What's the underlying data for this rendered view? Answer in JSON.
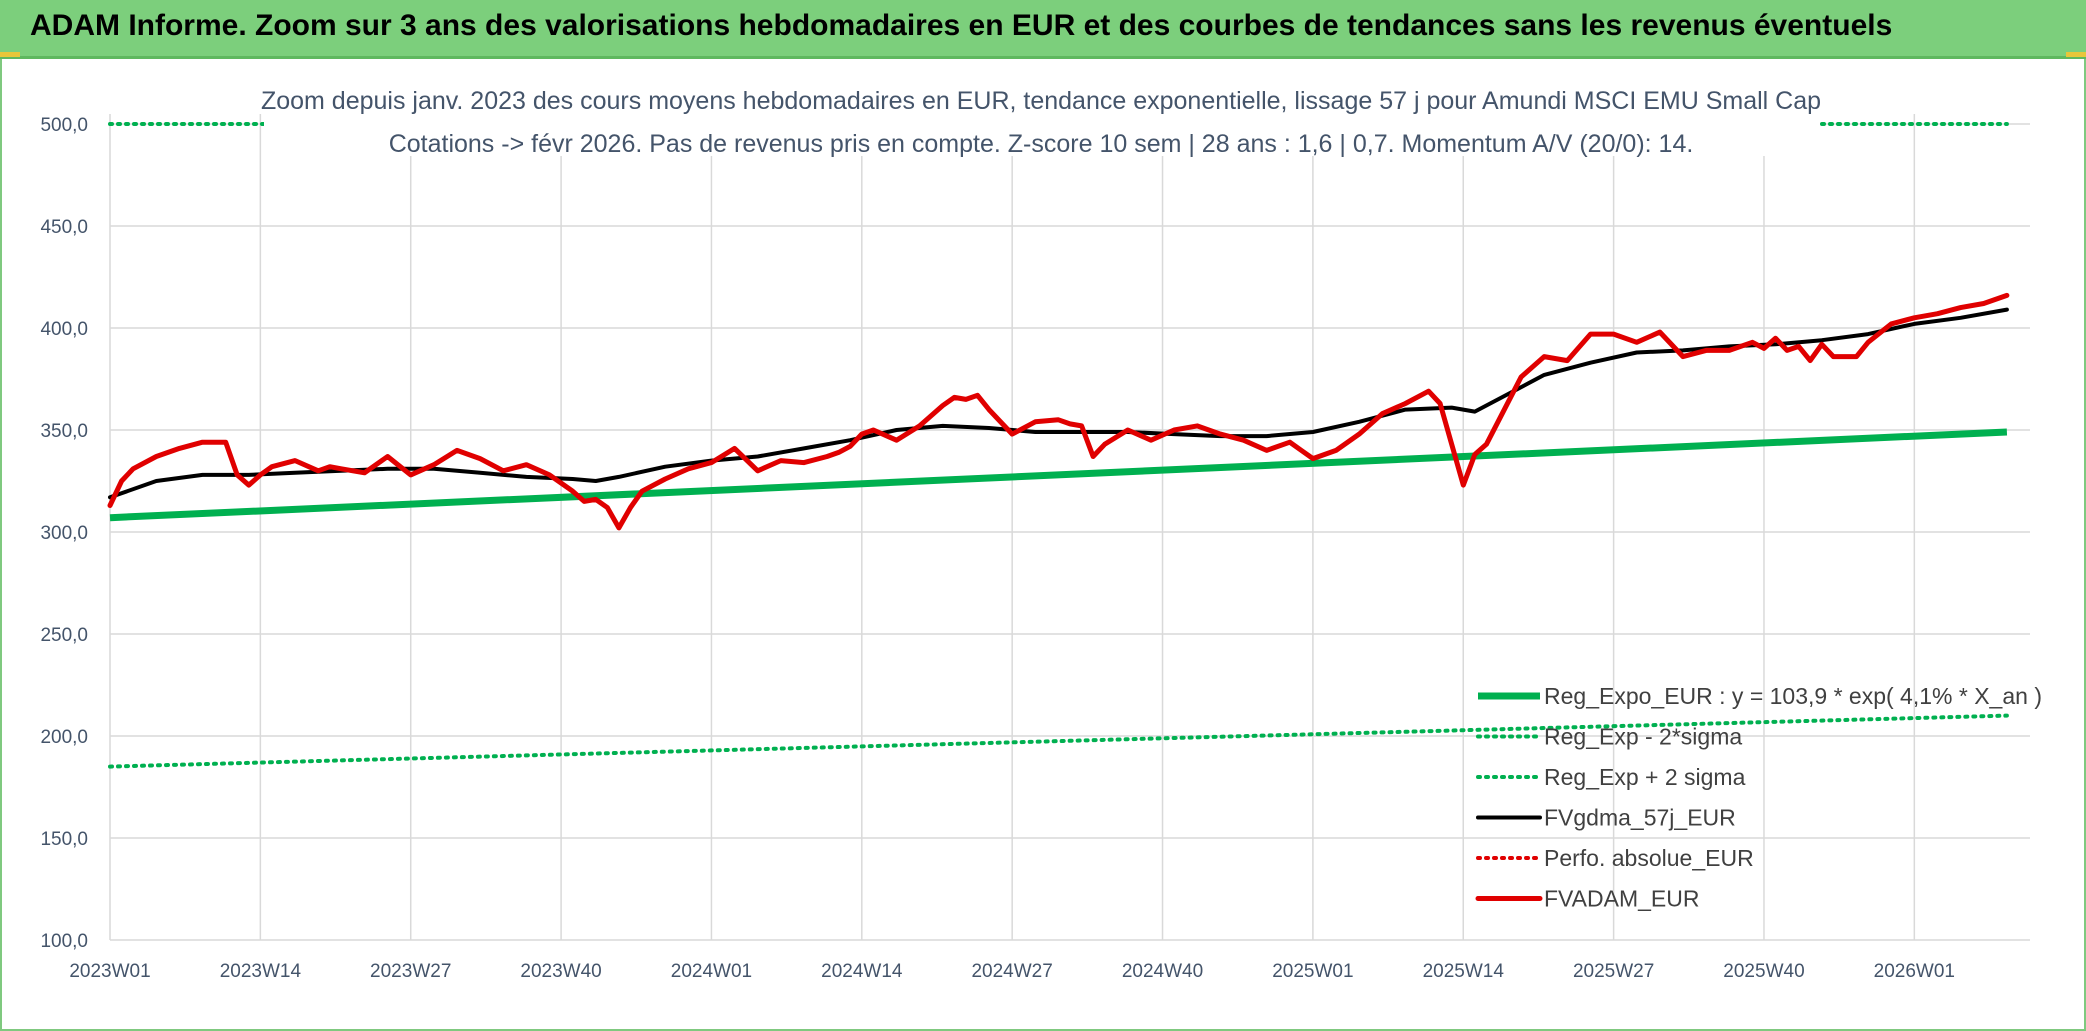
{
  "header": {
    "title": "ADAM Informe. Zoom sur 3 ans des valorisations hebdomadaires en EUR et des courbes de tendances sans les revenus éventuels"
  },
  "chart_data": {
    "type": "line",
    "title": "Zoom depuis janv. 2023 des cours moyens hebdomadaires en EUR, tendance exponentielle, lissage 57 j pour Amundi MSCI EMU Small Cap",
    "subtitle": "Cotations -> févr 2026. Pas de revenus pris en compte. Z-score 10 sem | 28 ans : 1,6 | 0,7. Momentum A/V (20/0): 14.",
    "xlabel": "",
    "ylabel": "",
    "ylim": [
      100,
      500
    ],
    "y_ticks": [
      "100,0",
      "150,0",
      "200,0",
      "250,0",
      "300,0",
      "350,0",
      "400,0",
      "450,0",
      "500,0"
    ],
    "x_ticks": [
      "2023W01",
      "2023W14",
      "2023W27",
      "2023W40",
      "2024W01",
      "2024W14",
      "2024W27",
      "2024W40",
      "2025W01",
      "2025W14",
      "2025W27",
      "2025W40",
      "2026W01"
    ],
    "grid": true,
    "legend_position": "bottom-right",
    "series": [
      {
        "name": "Reg_Expo_EUR : y = 103,9 * exp( 4,1% *  X_an )",
        "color": "#00b050",
        "style": "solid-thick",
        "x": [
          0,
          164
        ],
        "values": [
          307,
          349
        ]
      },
      {
        "name": "Reg_Exp - 2*sigma",
        "color": "#00b050",
        "style": "dotted",
        "x": [
          0,
          164
        ],
        "values": [
          185,
          210
        ]
      },
      {
        "name": "Reg_Exp + 2 sigma",
        "color": "#00b050",
        "style": "dotted",
        "x": [
          0,
          164
        ],
        "values": [
          500,
          500
        ]
      },
      {
        "name": "FVgdma_57j_EUR",
        "color": "#000000",
        "style": "solid",
        "x": [
          0,
          4,
          8,
          12,
          16,
          20,
          24,
          28,
          32,
          36,
          40,
          42,
          44,
          48,
          52,
          56,
          60,
          64,
          68,
          72,
          76,
          80,
          84,
          88,
          92,
          96,
          100,
          104,
          108,
          112,
          116,
          118,
          120,
          124,
          128,
          132,
          136,
          140,
          144,
          148,
          152,
          156,
          160,
          164
        ],
        "values": [
          317,
          325,
          328,
          328,
          329,
          330,
          331,
          331,
          329,
          327,
          326,
          325,
          327,
          332,
          335,
          337,
          341,
          345,
          350,
          352,
          351,
          349,
          349,
          349,
          348,
          347,
          347,
          349,
          354,
          360,
          361,
          359,
          365,
          377,
          383,
          388,
          389,
          391,
          392,
          394,
          397,
          402,
          405,
          409
        ]
      },
      {
        "name": "Perfo. absolue_EUR",
        "color": "#e00000",
        "style": "dotted",
        "x": [],
        "values": []
      },
      {
        "name": "FVADAM_EUR",
        "color": "#e00000",
        "style": "solid-thick",
        "x": [
          0,
          1,
          2,
          4,
          6,
          8,
          10,
          11,
          12,
          13,
          14,
          16,
          18,
          19,
          20,
          22,
          24,
          26,
          28,
          30,
          32,
          34,
          36,
          38,
          40,
          41,
          42,
          43,
          44,
          45,
          46,
          48,
          50,
          52,
          54,
          56,
          58,
          60,
          62,
          63,
          64,
          65,
          66,
          68,
          70,
          72,
          73,
          74,
          75,
          76,
          78,
          80,
          82,
          83,
          84,
          85,
          86,
          88,
          90,
          92,
          94,
          96,
          98,
          100,
          102,
          103,
          104,
          106,
          108,
          110,
          112,
          114,
          115,
          116,
          117,
          118,
          119,
          120,
          122,
          124,
          126,
          128,
          130,
          132,
          134,
          136,
          138,
          140,
          142,
          143,
          144,
          145,
          146,
          147,
          148,
          149,
          150,
          151,
          152,
          154,
          156,
          158,
          160,
          162,
          164
        ],
        "values": [
          313,
          325,
          331,
          337,
          341,
          344,
          344,
          328,
          323,
          328,
          332,
          335,
          330,
          332,
          331,
          329,
          337,
          328,
          333,
          340,
          336,
          330,
          333,
          328,
          320,
          315,
          316,
          312,
          302,
          312,
          320,
          326,
          331,
          334,
          341,
          330,
          335,
          334,
          337,
          339,
          342,
          348,
          350,
          345,
          352,
          362,
          366,
          365,
          367,
          360,
          348,
          354,
          355,
          353,
          352,
          337,
          343,
          350,
          345,
          350,
          352,
          348,
          345,
          340,
          344,
          340,
          336,
          340,
          348,
          358,
          363,
          369,
          363,
          343,
          323,
          338,
          343,
          354,
          376,
          386,
          384,
          397,
          397,
          393,
          398,
          386,
          389,
          389,
          393,
          390,
          395,
          389,
          391,
          384,
          392,
          386,
          386,
          386,
          393,
          402,
          405,
          407,
          410,
          412,
          416
        ]
      }
    ]
  }
}
